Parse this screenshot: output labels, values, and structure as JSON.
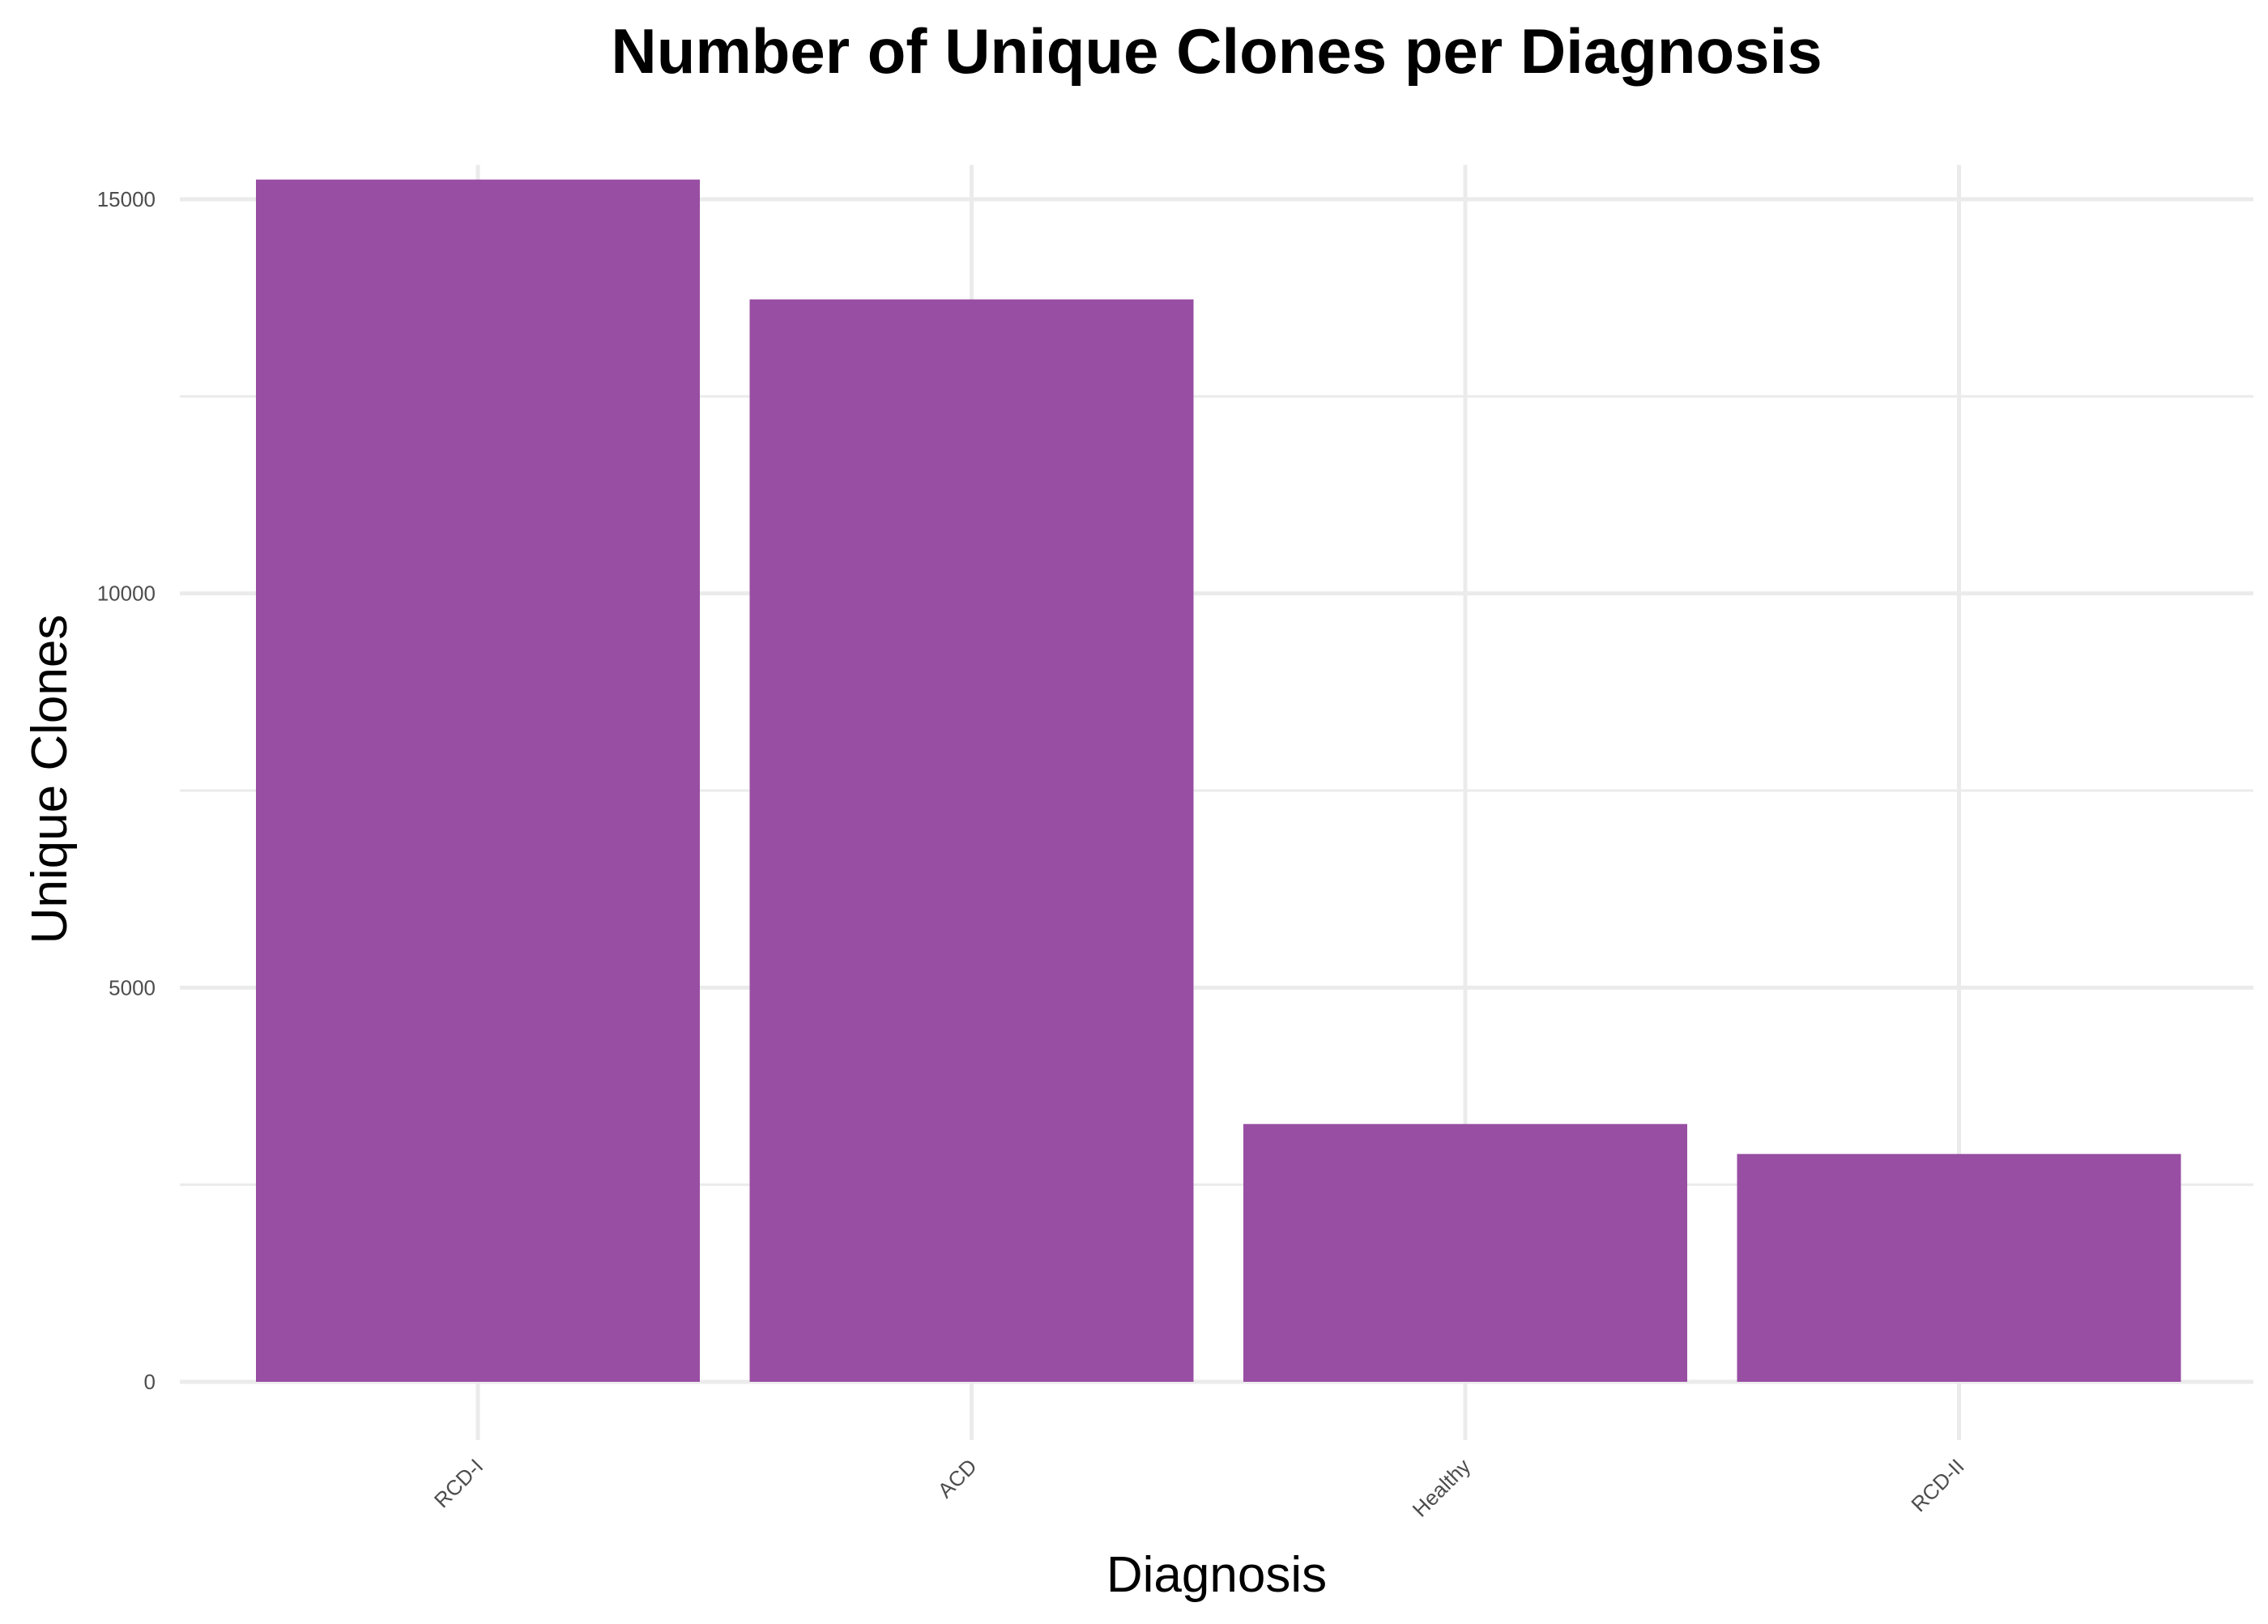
{
  "chart_data": {
    "type": "bar",
    "title": "Number of Unique Clones per Diagnosis",
    "xlabel": "Diagnosis",
    "ylabel": "Unique Clones",
    "categories": [
      "RCD-I",
      "ACD",
      "Healthy",
      "RCD-II"
    ],
    "values": [
      15250,
      13730,
      3270,
      2890
    ],
    "ylim": [
      0,
      16000
    ],
    "yticks": [
      0,
      5000,
      10000,
      15000
    ],
    "yticks_minor": [
      2500,
      7500,
      12500
    ],
    "ytick_labels": [
      "0",
      "5000",
      "10000",
      "15000"
    ],
    "grid": true,
    "legend": "none",
    "x_tick_rotation": "45 degrees",
    "bar_color": "#984EA3"
  }
}
